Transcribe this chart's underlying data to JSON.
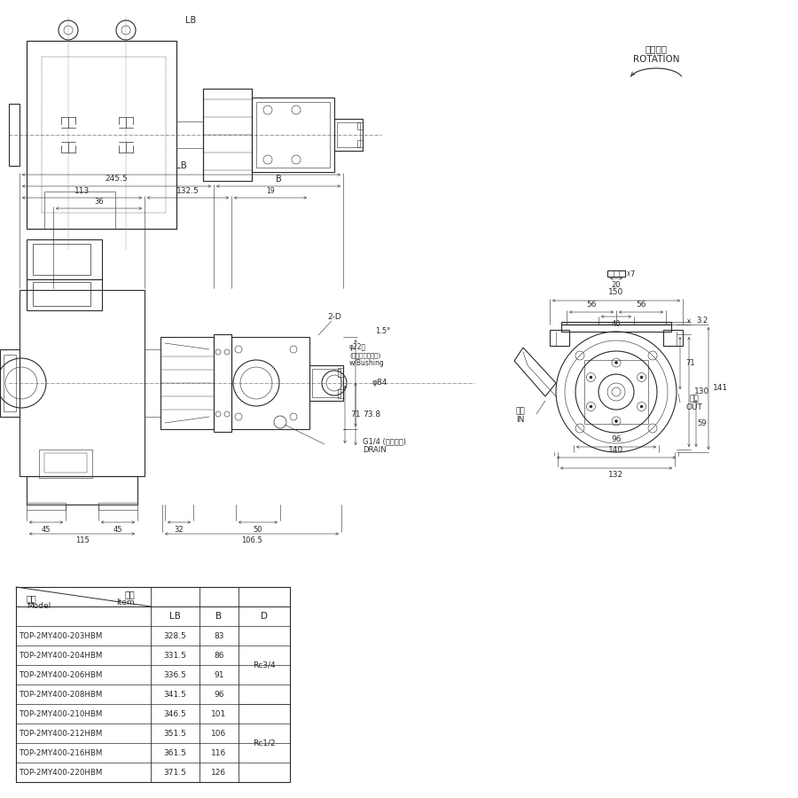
{
  "bg_color": "#ffffff",
  "line_color": "#2a2a2a",
  "table_models": [
    "TOP-2MY400-203HBM",
    "TOP-2MY400-204HBM",
    "TOP-2MY400-206HBM",
    "TOP-2MY400-208HBM",
    "TOP-2MY400-210HBM",
    "TOP-2MY400-212HBM",
    "TOP-2MY400-216HBM",
    "TOP-2MY400-220HBM"
  ],
  "table_LB": [
    "328.5",
    "331.5",
    "336.5",
    "341.5",
    "346.5",
    "351.5",
    "361.5",
    "371.5"
  ],
  "table_B": [
    "83",
    "86",
    "91",
    "96",
    "101",
    "106",
    "116",
    "126"
  ],
  "rc12_label": "Rc1/2",
  "rc34_label": "Rc3/4",
  "rotation_jp": "回転方向",
  "rotation_en": "ROTATION",
  "suction_jp": "吸入",
  "suction_en": "IN",
  "discharge_jp": "吐出",
  "discharge_en": "OUT",
  "header_jp": "項目",
  "header_en": "Item",
  "model_jp": "形式",
  "model_en": "Model",
  "drain_jp": "G1/4 (ドレン穴)",
  "drain_en": "DRAIN",
  "phi22_text1": "φ22穴",
  "phi22_text2": "(ゴムブッシュ付)",
  "phi22_text3": "w/Bushing",
  "dim_2d": "2-D",
  "dim_phi84": "φ84",
  "dim_15": "1.5°",
  "dim_LB": "LB",
  "dim_B": "B",
  "dim_2455": "245.5",
  "dim_113": "113",
  "dim_1325": "132.5",
  "dim_19": "19",
  "dim_36": "36",
  "dim_45a": "45",
  "dim_45b": "45",
  "dim_115": "115",
  "dim_32": "32",
  "dim_50": "50",
  "dim_1065": "106.5",
  "dim_71": "71",
  "dim_738": "73.8",
  "dim_132": "132",
  "dim_140": "140",
  "dim_96": "96",
  "dim_130": "130",
  "dim_141": "141",
  "dim_71r": "71",
  "dim_32r": "3.2",
  "dim_59": "59",
  "dim_56a": "56",
  "dim_56b": "56",
  "dim_150": "150",
  "dim_40": "40",
  "dim_20": "20",
  "dim_7": "7"
}
